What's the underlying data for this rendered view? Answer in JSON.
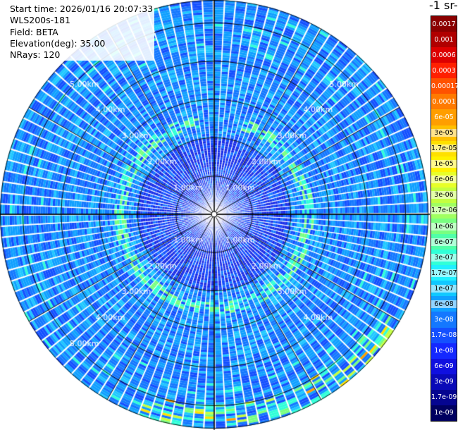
{
  "header": {
    "start_time": "Start time: 2026/01/16 20:07:33",
    "instrument": "WLS200s-181",
    "field": "Field: BETA",
    "elevation": "Elevation(deg): 35.00",
    "nrays": "NRays: 120"
  },
  "colorbar": {
    "title": "-1 sr-",
    "labels": [
      "0.0017",
      "0.001",
      "0.0006",
      "0.0003",
      "0.00017",
      "0.0001",
      "6e-05",
      "3e-05",
      "1.7e-05",
      "1e-05",
      "6e-06",
      "3e-06",
      "1.7e-06",
      "1e-06",
      "6e-07",
      "3e-07",
      "1.7e-07",
      "1e-07",
      "6e-08",
      "3e-08",
      "1.7e-08",
      "1e-08",
      "6e-09",
      "3e-09",
      "1.7e-09",
      "1e-09"
    ],
    "colors": [
      "#8b0000",
      "#b00000",
      "#dd0000",
      "#ff2000",
      "#ff5200",
      "#ff7a00",
      "#ff9e00",
      "#ffc000",
      "#ffe000",
      "#fff200",
      "#e8ff28",
      "#c4ff40",
      "#a0ff60",
      "#78ff80",
      "#50ffa8",
      "#30ffd8",
      "#20f0ff",
      "#10c8ff",
      "#10a0ff",
      "#1478ff",
      "#1450ff",
      "#1428ff",
      "#1010e0",
      "#0a0ab8",
      "#050590",
      "#000060"
    ]
  },
  "chart_data": {
    "type": "heatmap",
    "projection": "polar-ppi",
    "nrays": 120,
    "range_rings_km": [
      1,
      2,
      3,
      4,
      5
    ],
    "ring_labels": [
      "1.00km",
      "2.00km",
      "3.00km",
      "4.00km",
      "5.00km"
    ],
    "max_range_km": 5.6,
    "field": "BETA",
    "units": "-1 sr-",
    "features": [
      {
        "range_km": [
          2.3,
          2.6
        ],
        "azimuth_deg": [
          15,
          350
        ],
        "value_approx": "1.7e-06"
      },
      {
        "range_km": [
          5.0,
          5.6
        ],
        "azimuth_deg": [
          120,
          200
        ],
        "value_approx": "3e-05"
      }
    ],
    "background_value_approx": "6e-08"
  }
}
